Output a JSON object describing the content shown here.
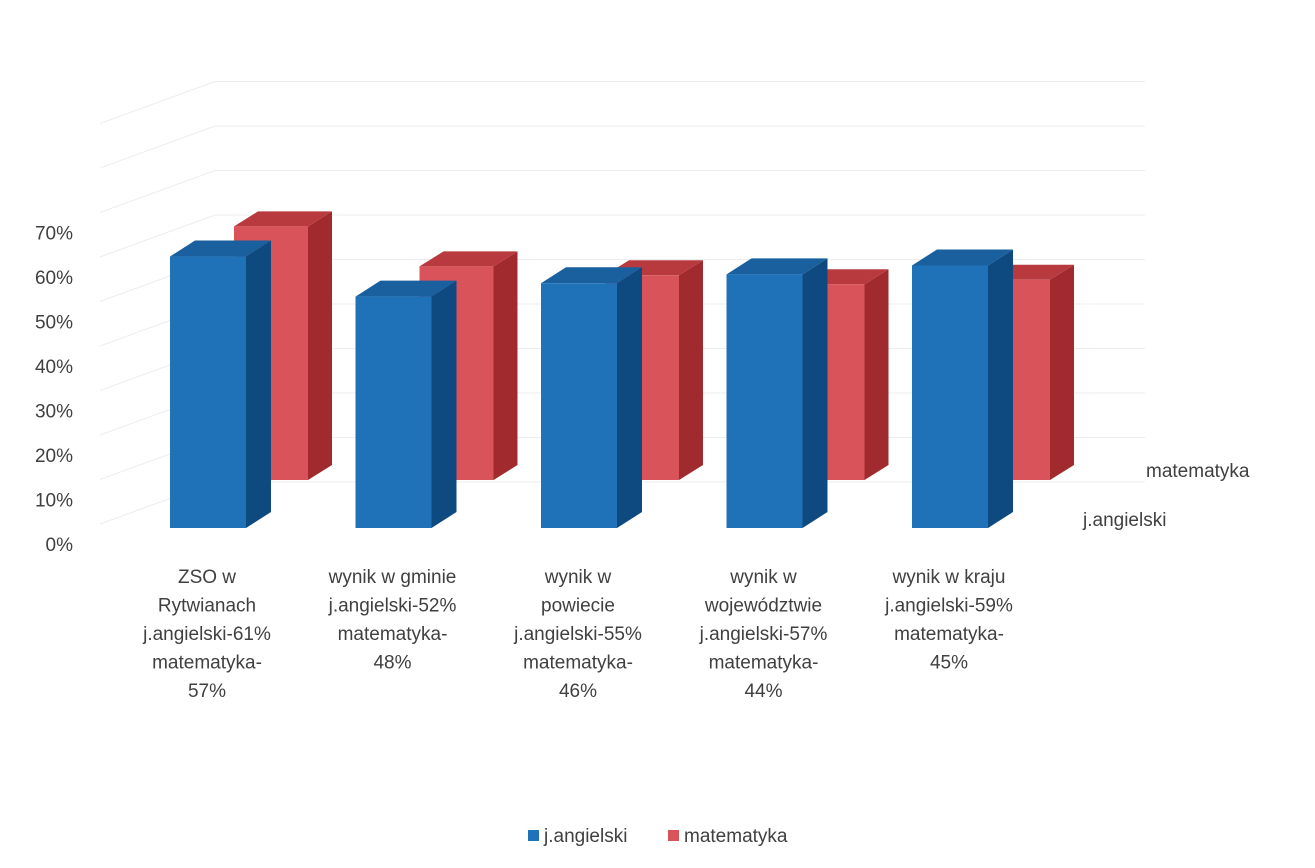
{
  "chart_data": {
    "type": "bar",
    "style": "3d-clustered-column",
    "categories": [
      [
        "ZSO w",
        "Rytwianach",
        "j.angielski-61%",
        "matematyka-",
        "57%"
      ],
      [
        "wynik w gminie",
        "j.angielski-52%",
        "matematyka-",
        "48%"
      ],
      [
        "wynik w",
        "powiecie",
        "j.angielski-55%",
        "matematyka-",
        "46%"
      ],
      [
        "wynik  w",
        "województwie",
        "j.angielski-57%",
        "matematyka-",
        "44%"
      ],
      [
        "wynik w kraju",
        "j.angielski-59%",
        "matematyka-",
        "45%"
      ]
    ],
    "series": [
      {
        "name": "j.angielski",
        "values": [
          61,
          52,
          55,
          57,
          59
        ],
        "color": "#1f72b8",
        "dark": "#0e4a80",
        "top": "#1a5f9e"
      },
      {
        "name": "matematyka",
        "values": [
          57,
          48,
          46,
          44,
          45
        ],
        "color": "#d9545a",
        "dark": "#a02a2e",
        "top": "#b83a3f"
      }
    ],
    "y_ticks": [
      "0%",
      "10%",
      "20%",
      "30%",
      "40%",
      "50%",
      "60%",
      "70%"
    ],
    "ylim": [
      0,
      70
    ],
    "unit": "%",
    "grid": true,
    "legend": "bottom",
    "legend_entries": [
      "j.angielski",
      "matematyka"
    ],
    "depth_labels": [
      "matematyka",
      "j.angielski"
    ]
  }
}
